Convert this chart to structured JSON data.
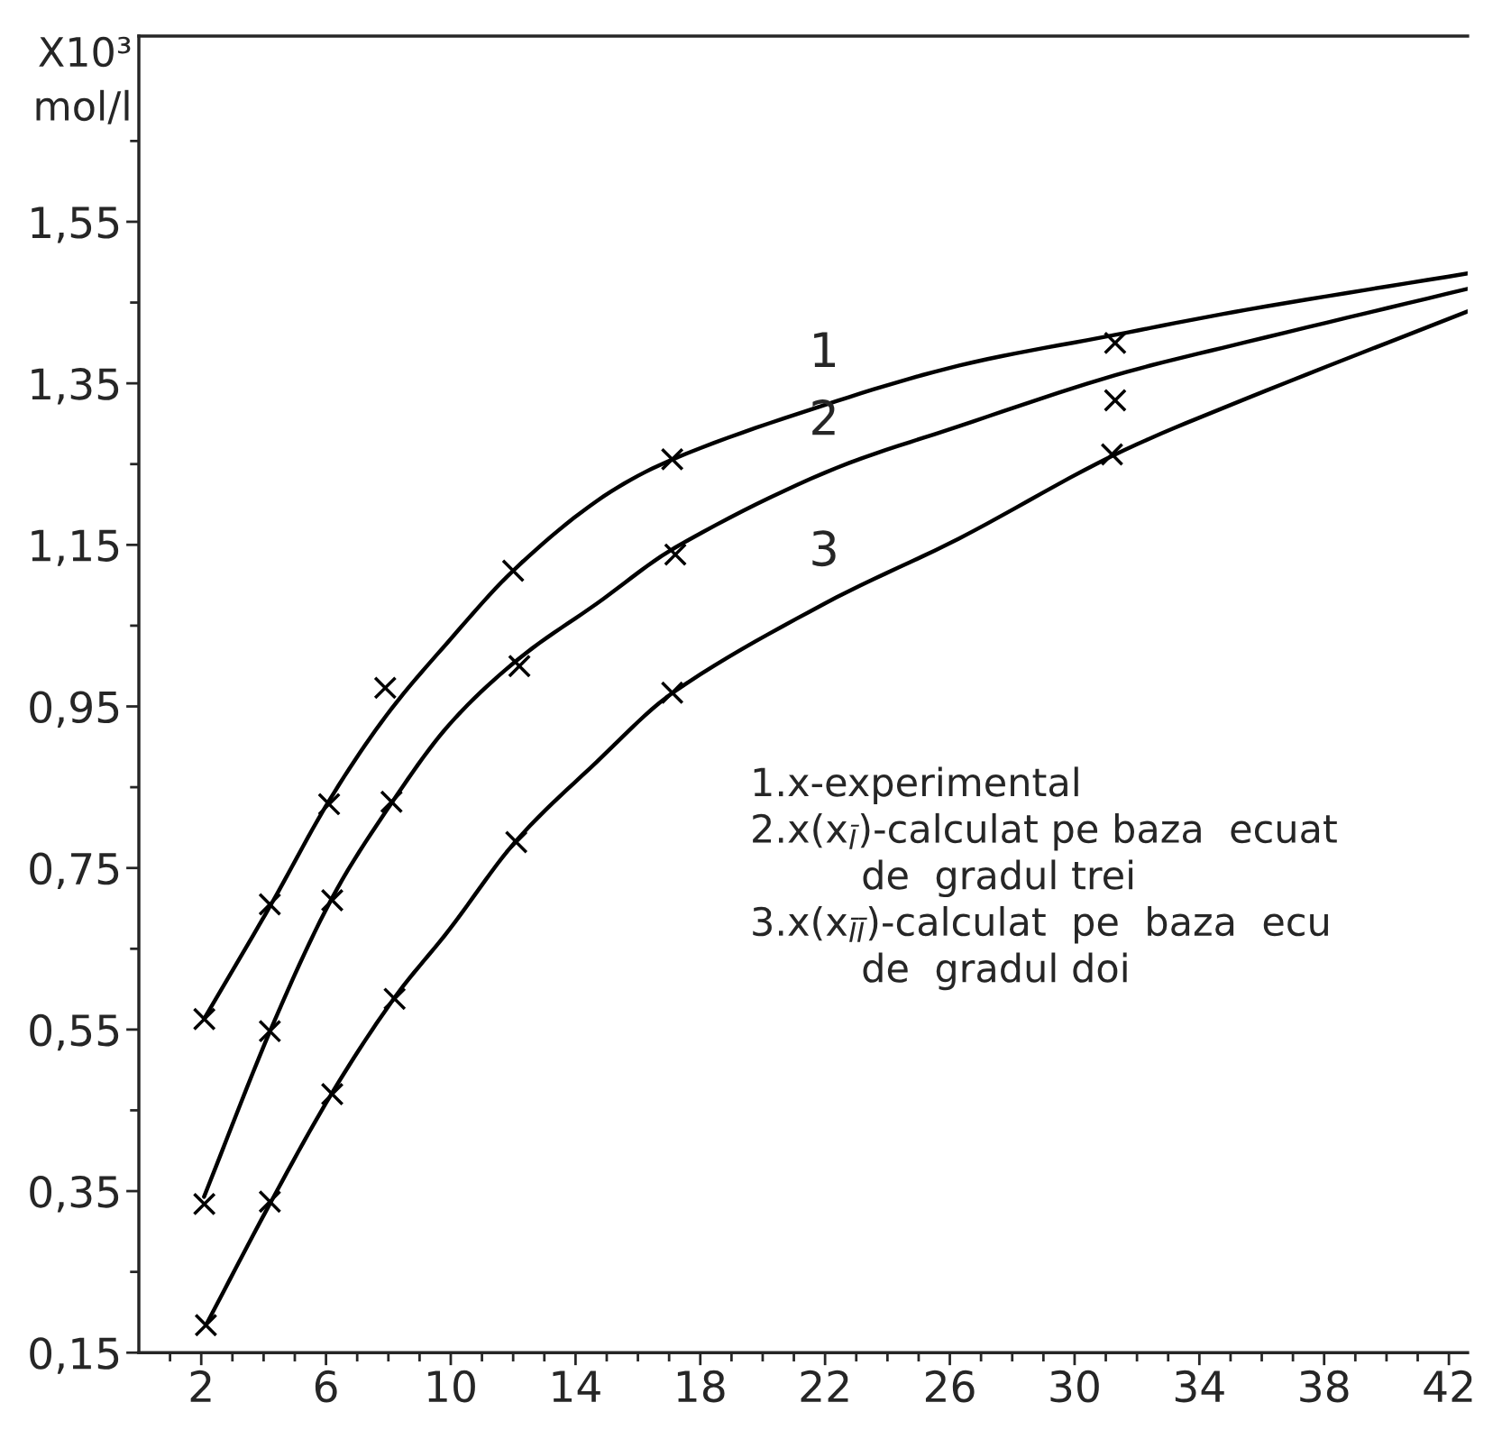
{
  "chart_data": {
    "type": "line",
    "ylabel": "X10³\nmol/l",
    "xlim": [
      0,
      42.6
    ],
    "ylim": [
      0.15,
      1.78
    ],
    "xticks": [
      2,
      6,
      10,
      14,
      18,
      22,
      26,
      30,
      34,
      38,
      42
    ],
    "yticks": [
      {
        "value": 0.15,
        "label": "0,15"
      },
      {
        "value": 0.35,
        "label": "0,35"
      },
      {
        "value": 0.55,
        "label": "0,55"
      },
      {
        "value": 0.75,
        "label": "0,75"
      },
      {
        "value": 0.95,
        "label": "0,95"
      },
      {
        "value": 1.15,
        "label": "1,15"
      },
      {
        "value": 1.35,
        "label": "1,35"
      },
      {
        "value": 1.55,
        "label": "1,55"
      }
    ],
    "grid": false,
    "legend": false,
    "series": [
      {
        "color": "#000000",
        "x": [
          2.09,
          4.24,
          6.08,
          7.92,
          9.94,
          12.0,
          14.67,
          17.12,
          21.97,
          26.3,
          31.3,
          35.5,
          42.6
        ],
        "values": [
          0.563,
          0.705,
          0.832,
          0.938,
          1.031,
          1.118,
          1.204,
          1.256,
          1.323,
          1.372,
          1.41,
          1.441,
          1.486
        ]
      },
      {
        "color": "#000000",
        "x": [
          2.09,
          4.24,
          6.17,
          8.13,
          9.94,
          12.15,
          14.67,
          17.21,
          21.97,
          26.3,
          31.3,
          35.5,
          42.6
        ],
        "values": [
          0.343,
          0.551,
          0.711,
          0.832,
          0.927,
          1.008,
          1.077,
          1.147,
          1.239,
          1.297,
          1.36,
          1.401,
          1.467
        ]
      },
      {
        "color": "#000000",
        "x": [
          2.15,
          4.24,
          6.17,
          8.17,
          9.94,
          12.06,
          14.67,
          17.12,
          21.97,
          26.3,
          31.2,
          35.5,
          42.6
        ],
        "values": [
          0.184,
          0.337,
          0.47,
          0.588,
          0.673,
          0.782,
          0.881,
          0.967,
          1.077,
          1.158,
          1.26,
          1.331,
          1.439
        ]
      },
      {
        "type": "scatter",
        "color": "#000000",
        "marker": "cross",
        "x": [
          2.1,
          4.2,
          6.1,
          7.9,
          12.0,
          17.1,
          31.3
        ],
        "values": [
          0.563,
          0.705,
          0.829,
          0.973,
          1.118,
          1.256,
          1.4
        ]
      },
      {
        "type": "scatter",
        "color": "#000000",
        "marker": "cross",
        "x": [
          2.1,
          4.2,
          6.2,
          8.1,
          12.2,
          17.2,
          31.3
        ],
        "values": [
          0.334,
          0.548,
          0.71,
          0.832,
          1.0,
          1.138,
          1.329
        ]
      },
      {
        "type": "scatter",
        "color": "#000000",
        "marker": "cross",
        "x": [
          2.15,
          4.2,
          6.2,
          8.2,
          12.1,
          17.1,
          31.2
        ],
        "values": [
          0.184,
          0.337,
          0.47,
          0.588,
          0.782,
          0.967,
          1.262
        ]
      }
    ],
    "annotations": [
      "1",
      "2",
      "3",
      "1.x-experimental\n2.x(x$_{Ī}$)-calculat pe baza  ecuat\n         de  gradul trei\n3.x(x$_{ĪĪ}$)-calculat  pe  baza  ecu\n         de  gradul doi"
    ]
  }
}
